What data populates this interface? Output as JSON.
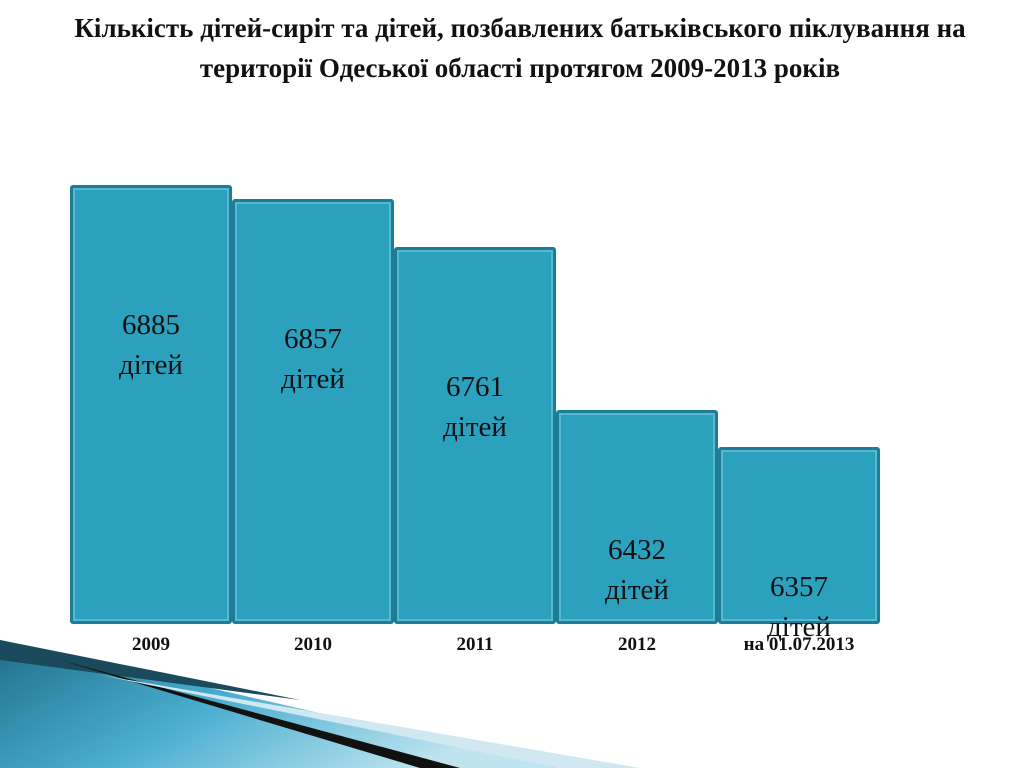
{
  "chart_data": {
    "type": "bar",
    "title": "Кількість дітей-сиріт та дітей, позбавлених батьківського піклування на території Одеської області протягом 2009-2013 років",
    "categories": [
      "2009",
      "2010",
      "2011",
      "2012",
      "на 01.07.2013"
    ],
    "values": [
      6885,
      6857,
      6761,
      6432,
      6357
    ],
    "value_labels": [
      "6885 дітей",
      "6857 дітей",
      "6761 дітей",
      "6432 дітей",
      "6357 дітей"
    ],
    "color": "#2ba1be",
    "ylim": [
      6000,
      6900
    ]
  }
}
